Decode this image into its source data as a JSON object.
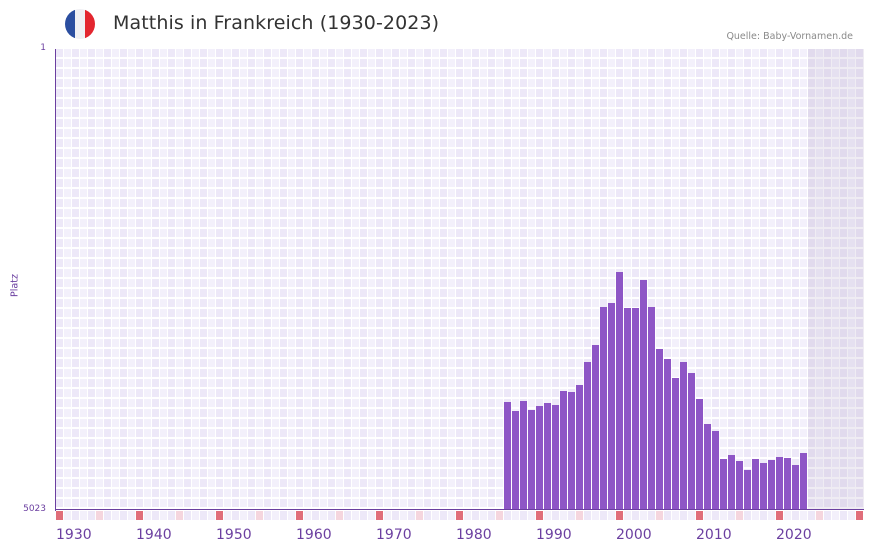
{
  "header": {
    "title": "Matthis in Frankreich (1930-2023)",
    "source": "Quelle: Baby-Vornamen.de",
    "flag_colors": [
      "#2b4ea0",
      "#f0f0f4",
      "#e3262f"
    ]
  },
  "colors": {
    "bar": "#8e56c6",
    "axis": "#6b3fa0",
    "grid_a": "#ede8f8",
    "grid_b": "#f3f0fb",
    "decade_marker": "#e06e7a",
    "half_decade_marker": "#f5d6de",
    "future_shade": "#e2dde9"
  },
  "chart_data": {
    "type": "bar",
    "title": "Matthis in Frankreich (1930-2023)",
    "xlabel": "",
    "ylabel": "Platz",
    "y_inverted": true,
    "ylim": [
      1,
      5023
    ],
    "xlim": [
      1930,
      2030
    ],
    "y_tick_labels": [
      "1",
      "5023"
    ],
    "x_tick_labels": [
      "1930",
      "1940",
      "1950",
      "1960",
      "1970",
      "1980",
      "1990",
      "2000",
      "2010",
      "2020"
    ],
    "grid": true,
    "legend": null,
    "shaded_region": {
      "from": 2024,
      "to": 2030
    },
    "categories": [
      1986,
      1987,
      1988,
      1989,
      1990,
      1991,
      1992,
      1993,
      1994,
      1995,
      1996,
      1997,
      1998,
      1999,
      2000,
      2001,
      2002,
      2003,
      2004,
      2005,
      2006,
      2007,
      2008,
      2009,
      2010,
      2011,
      2012,
      2013,
      2014,
      2015,
      2016,
      2017,
      2018,
      2019,
      2020,
      2021,
      2022,
      2023
    ],
    "values": [
      3846,
      3945,
      3836,
      3934,
      3890,
      3857,
      3879,
      3727,
      3738,
      3661,
      3411,
      3226,
      2812,
      2768,
      2430,
      2823,
      2823,
      2517,
      2812,
      3269,
      3378,
      3585,
      3411,
      3531,
      3814,
      4086,
      4163,
      4468,
      4424,
      4489,
      4587,
      4468,
      4511,
      4479,
      4446,
      4457,
      4533,
      4402
    ]
  }
}
